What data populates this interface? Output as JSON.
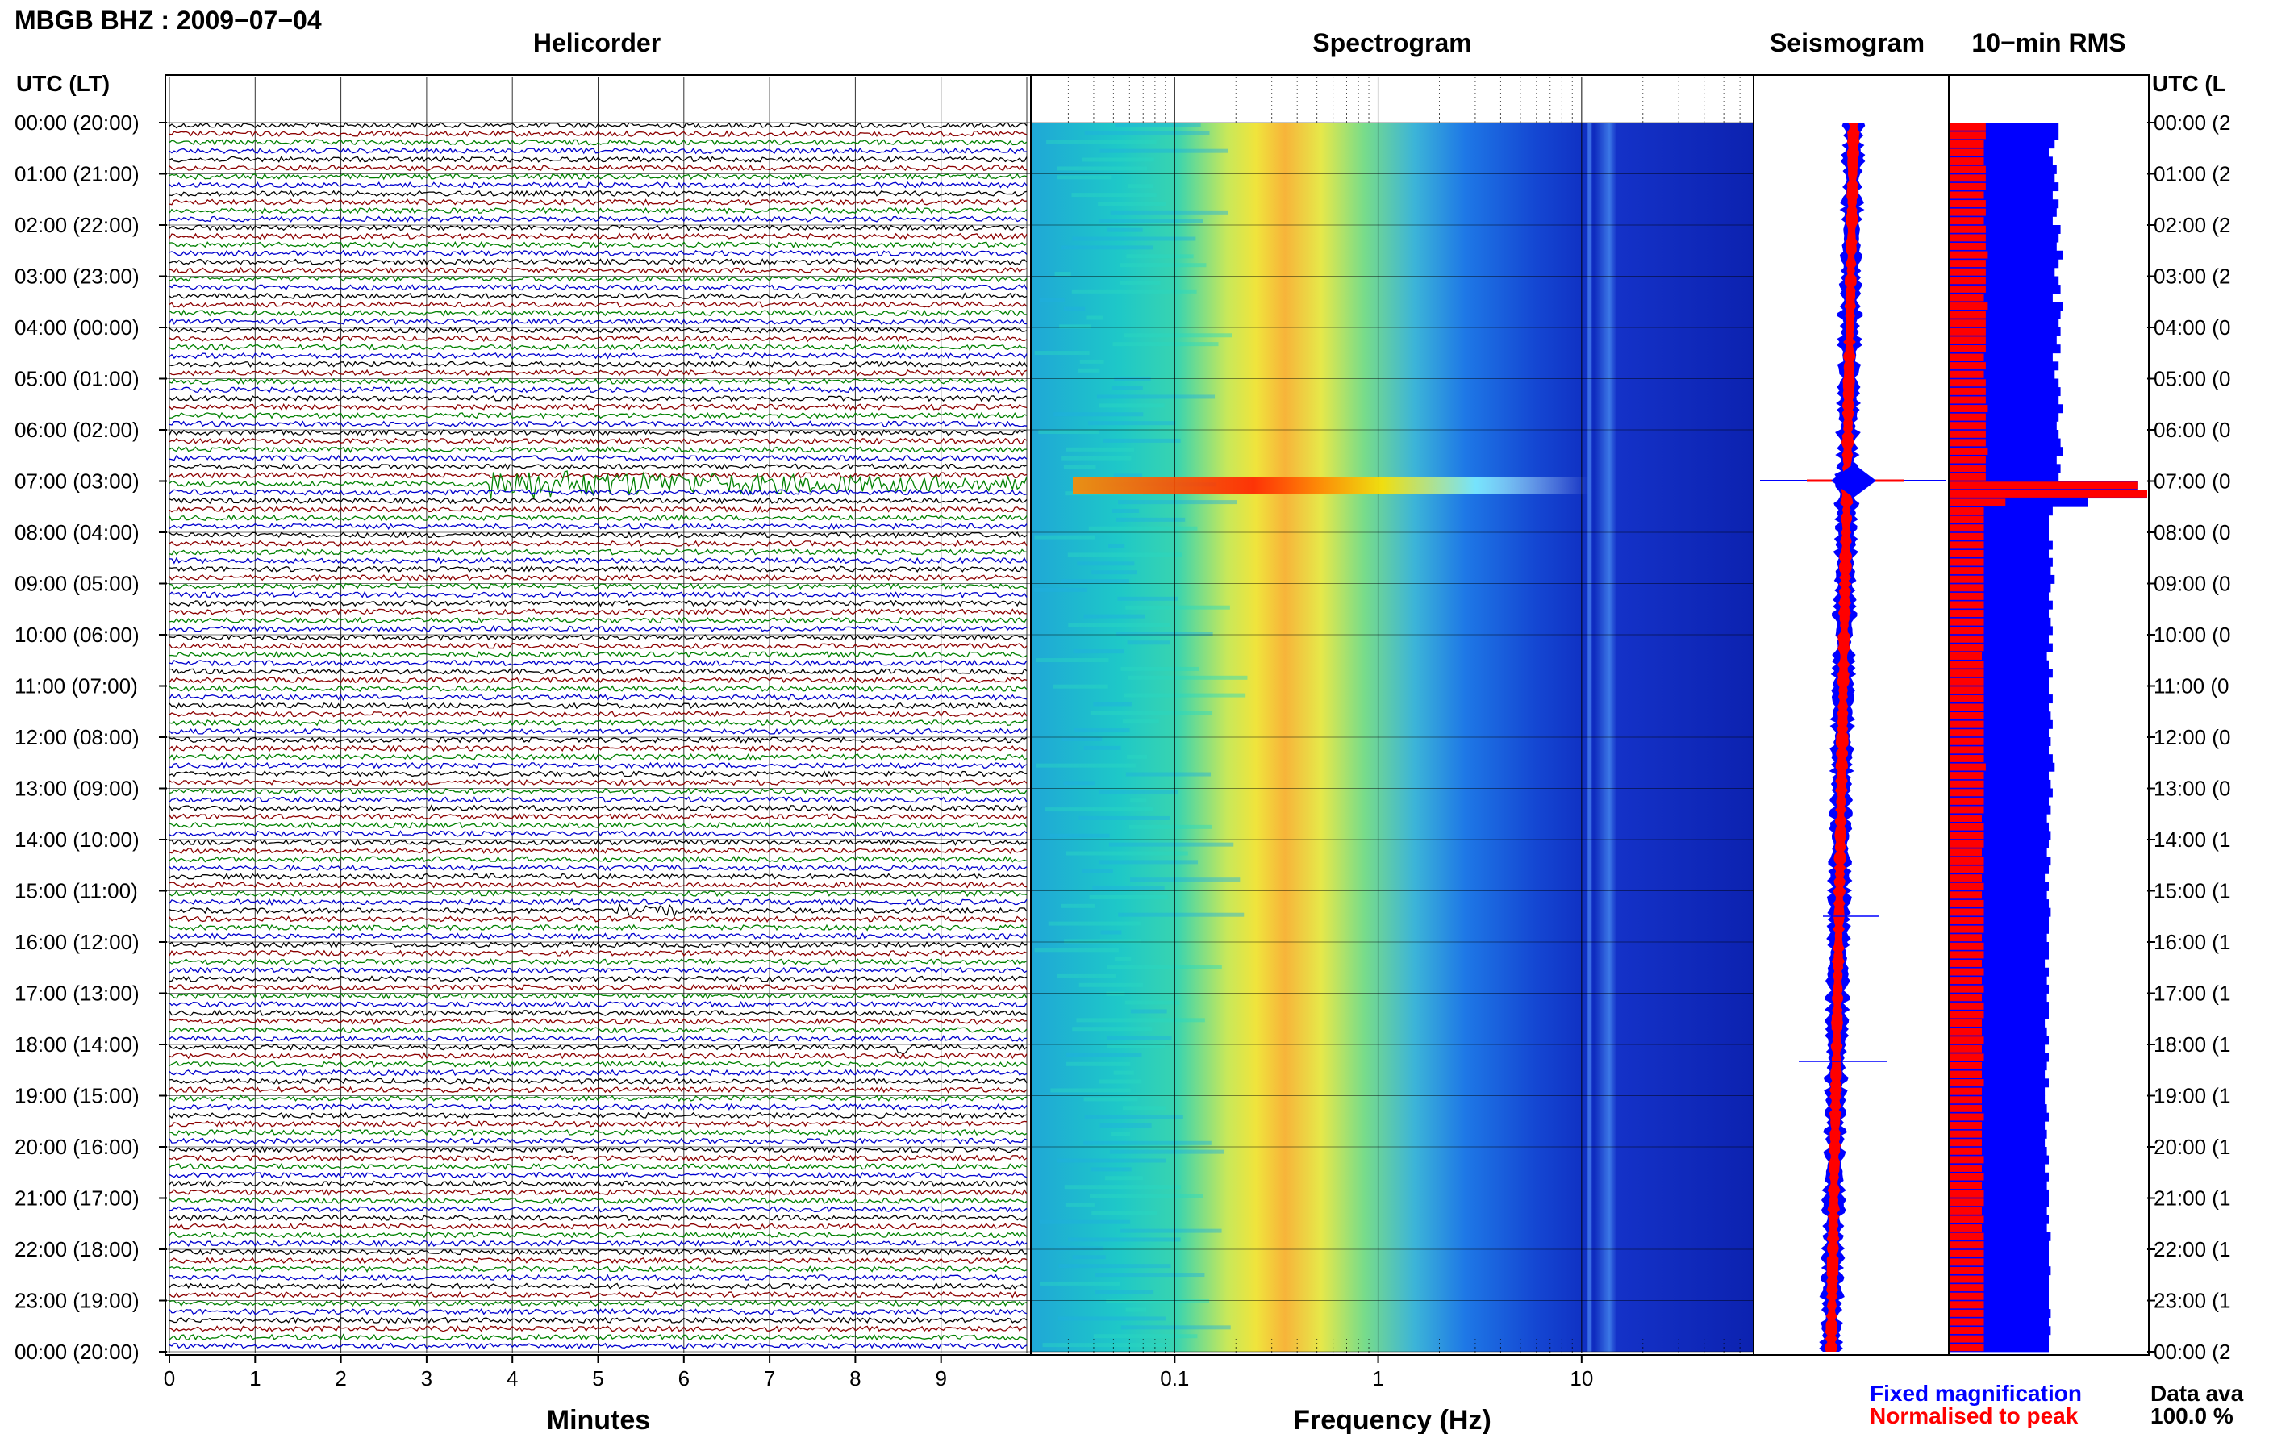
{
  "header": {
    "title": "MBGB BHZ : 2009−07−04",
    "panel_titles": {
      "helicorder": "Helicorder",
      "spectrogram": "Spectrogram",
      "seismogram": "Seismogram",
      "rms": "10−min RMS"
    }
  },
  "axes": {
    "left_header": "UTC (LT)",
    "right_header": "UTC (L",
    "hour_labels": [
      "00:00 (20:00)",
      "01:00 (21:00)",
      "02:00 (22:00)",
      "03:00 (23:00)",
      "04:00 (00:00)",
      "05:00 (01:00)",
      "06:00 (02:00)",
      "07:00 (03:00)",
      "08:00 (04:00)",
      "09:00 (05:00)",
      "10:00 (06:00)",
      "11:00 (07:00)",
      "12:00 (08:00)",
      "13:00 (09:00)",
      "14:00 (10:00)",
      "15:00 (11:00)",
      "16:00 (12:00)",
      "17:00 (13:00)",
      "18:00 (14:00)",
      "19:00 (15:00)",
      "20:00 (16:00)",
      "21:00 (17:00)",
      "22:00 (18:00)",
      "23:00 (19:00)",
      "00:00 (20:00)"
    ],
    "right_hour_labels": [
      "00:00 (2",
      "01:00 (2",
      "02:00 (2",
      "03:00 (2",
      "04:00 (0",
      "05:00 (0",
      "06:00 (0",
      "07:00 (0",
      "08:00 (0",
      "09:00 (0",
      "10:00 (0",
      "11:00 (0",
      "12:00 (0",
      "13:00 (0",
      "14:00 (1",
      "15:00 (1",
      "16:00 (1",
      "17:00 (1",
      "18:00 (1",
      "19:00 (1",
      "20:00 (1",
      "21:00 (1",
      "22:00 (1",
      "23:00 (1",
      "00:00 (2"
    ],
    "minutes_xlabel": "Minutes",
    "minute_ticks": [
      "0",
      "1",
      "2",
      "3",
      "4",
      "5",
      "6",
      "7",
      "8",
      "9"
    ],
    "frequency_xlabel": "Frequency (Hz)",
    "frequency_ticks": [
      "0.1",
      "1",
      "10"
    ]
  },
  "legend": {
    "fixed": "Fixed magnification",
    "normalised": "Normalised to peak",
    "fixed_color": "#0000ff",
    "normalised_color": "#ff0000",
    "availability_label": "Data ava",
    "availability_value": "100.0 %"
  },
  "colors": {
    "trace_cycle": [
      "#000000",
      "#8b0000",
      "#008000",
      "#0000cd"
    ],
    "spectrogram_low": "#0000c8",
    "spectrogram_high": "#ff0000"
  },
  "chart_data": [
    {
      "type": "line",
      "title": "Helicorder",
      "xlabel": "Minutes",
      "ylabel": "UTC (LT)",
      "xlim": [
        0,
        10
      ],
      "traces_per_hour": 6,
      "events": [
        {
          "utc": "07:00",
          "minute_start": 3.7,
          "minute_end": 10,
          "description": "large amplitude"
        },
        {
          "utc": "15:20",
          "minute_start": 5.2,
          "minute_end": 5.9
        },
        {
          "utc": "18:00",
          "minute_start": 8.5,
          "minute_end": 8.6
        }
      ]
    },
    {
      "type": "heatmap",
      "title": "Spectrogram",
      "xlabel": "Frequency (Hz)",
      "x_scale": "log",
      "xlim": [
        0.02,
        70
      ],
      "hot_band_hz": [
        0.25,
        0.5
      ],
      "events": [
        {
          "utc": "07:00",
          "fmin_hz": 0.03,
          "fmax_hz": 10
        }
      ]
    },
    {
      "type": "bar",
      "title": "10−min RMS",
      "series": [
        {
          "name": "Fixed magnification",
          "values": [
            0.55,
            0.55,
            0.53,
            0.5,
            0.52,
            0.54,
            0.53,
            0.55,
            0.52,
            0.55,
            0.54,
            0.52,
            0.56,
            0.55,
            0.54,
            0.57,
            0.55,
            0.53,
            0.55,
            0.56,
            0.52,
            0.57,
            0.56,
            0.55,
            0.56,
            0.54,
            0.56,
            0.52,
            0.55,
            0.53,
            0.55,
            0.56,
            0.55,
            0.57,
            0.55,
            0.54,
            0.55,
            0.56,
            0.57,
            0.54,
            0.56,
            0.55,
            0.95,
            1.0,
            0.7,
            0.52,
            0.5,
            0.5,
            0.5,
            0.52,
            0.5,
            0.52,
            0.51,
            0.53,
            0.51,
            0.5,
            0.52,
            0.5,
            0.51,
            0.52,
            0.5,
            0.52,
            0.49,
            0.5,
            0.52,
            0.5,
            0.5,
            0.52,
            0.5,
            0.51,
            0.52,
            0.5,
            0.51,
            0.5,
            0.52,
            0.53,
            0.5,
            0.51,
            0.52,
            0.5,
            0.51,
            0.49,
            0.5,
            0.51,
            0.5,
            0.49,
            0.51,
            0.5,
            0.48,
            0.5,
            0.49,
            0.5,
            0.51,
            0.5,
            0.5,
            0.49,
            0.5,
            0.5,
            0.48,
            0.5,
            0.49,
            0.5,
            0.49,
            0.5,
            0.5,
            0.48,
            0.49,
            0.5,
            0.48,
            0.5,
            0.49,
            0.48,
            0.5,
            0.48,
            0.48,
            0.49,
            0.5,
            0.48,
            0.49,
            0.48,
            0.49,
            0.5,
            0.48,
            0.5,
            0.49,
            0.5,
            0.5,
            0.49,
            0.5,
            0.49,
            0.51,
            0.5,
            0.5,
            0.5,
            0.51,
            0.5,
            0.5,
            0.5,
            0.5,
            0.51,
            0.5,
            0.51,
            0.5,
            0.5
          ]
        },
        {
          "name": "Normalised to peak",
          "values": [
            0.18,
            0.18,
            0.17,
            0.17,
            0.17,
            0.18,
            0.18,
            0.18,
            0.17,
            0.18,
            0.18,
            0.17,
            0.18,
            0.18,
            0.18,
            0.19,
            0.18,
            0.18,
            0.18,
            0.18,
            0.17,
            0.19,
            0.18,
            0.18,
            0.18,
            0.18,
            0.18,
            0.17,
            0.18,
            0.17,
            0.18,
            0.18,
            0.18,
            0.19,
            0.18,
            0.18,
            0.18,
            0.18,
            0.19,
            0.18,
            0.18,
            0.18,
            0.95,
            1.0,
            0.28,
            0.17,
            0.17,
            0.17,
            0.17,
            0.17,
            0.17,
            0.17,
            0.17,
            0.17,
            0.17,
            0.17,
            0.17,
            0.17,
            0.17,
            0.17,
            0.17,
            0.17,
            0.16,
            0.17,
            0.17,
            0.17,
            0.17,
            0.17,
            0.17,
            0.17,
            0.17,
            0.17,
            0.17,
            0.17,
            0.17,
            0.18,
            0.17,
            0.17,
            0.17,
            0.17,
            0.17,
            0.16,
            0.17,
            0.17,
            0.17,
            0.16,
            0.17,
            0.17,
            0.16,
            0.17,
            0.16,
            0.17,
            0.17,
            0.17,
            0.17,
            0.16,
            0.17,
            0.17,
            0.16,
            0.17,
            0.16,
            0.17,
            0.16,
            0.17,
            0.17,
            0.16,
            0.16,
            0.17,
            0.16,
            0.17,
            0.16,
            0.16,
            0.17,
            0.16,
            0.16,
            0.16,
            0.17,
            0.16,
            0.16,
            0.16,
            0.16,
            0.17,
            0.16,
            0.17,
            0.16,
            0.17,
            0.17,
            0.16,
            0.17,
            0.16,
            0.17,
            0.17,
            0.17,
            0.17,
            0.17,
            0.17,
            0.17,
            0.17,
            0.17,
            0.17,
            0.17,
            0.17,
            0.17,
            0.17
          ]
        }
      ]
    }
  ]
}
